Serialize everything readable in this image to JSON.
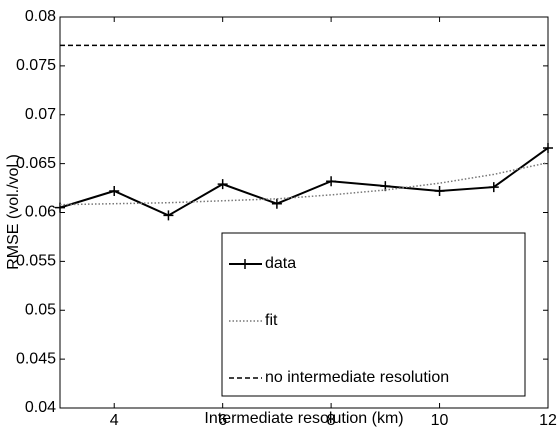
{
  "chart_data": {
    "type": "line",
    "x_label": "Intermediate resolution (km)",
    "y_label": "RMSE (vol./vol.)",
    "x": [
      3,
      4,
      5,
      6,
      7,
      8,
      9,
      10,
      11,
      12
    ],
    "series": [
      {
        "name": "data",
        "color": "#000000",
        "style": "solid",
        "marker": "+",
        "values": [
          0.0605,
          0.0622,
          0.0597,
          0.0629,
          0.0609,
          0.0632,
          0.0627,
          0.0622,
          0.0626,
          0.0666
        ]
      },
      {
        "name": "fit",
        "color": "#777777",
        "style": "dotted",
        "values": [
          0.0608,
          0.0609,
          0.061,
          0.0612,
          0.0614,
          0.0618,
          0.0623,
          0.063,
          0.0639,
          0.0651
        ]
      },
      {
        "name": "no intermediate resolution",
        "color": "#000000",
        "style": "dashed",
        "values": [
          0.0771,
          0.0771,
          0.0771,
          0.0771,
          0.0771,
          0.0771,
          0.0771,
          0.0771,
          0.0771,
          0.0771
        ]
      }
    ],
    "xlim": [
      3,
      12
    ],
    "xticks": [
      4,
      6,
      8,
      10,
      12
    ],
    "ylim": [
      0.04,
      0.08
    ],
    "yticks": [
      0.04,
      0.045,
      0.05,
      0.055,
      0.06,
      0.065,
      0.07,
      0.075,
      0.08
    ],
    "grid": false,
    "legend": "lower right"
  }
}
